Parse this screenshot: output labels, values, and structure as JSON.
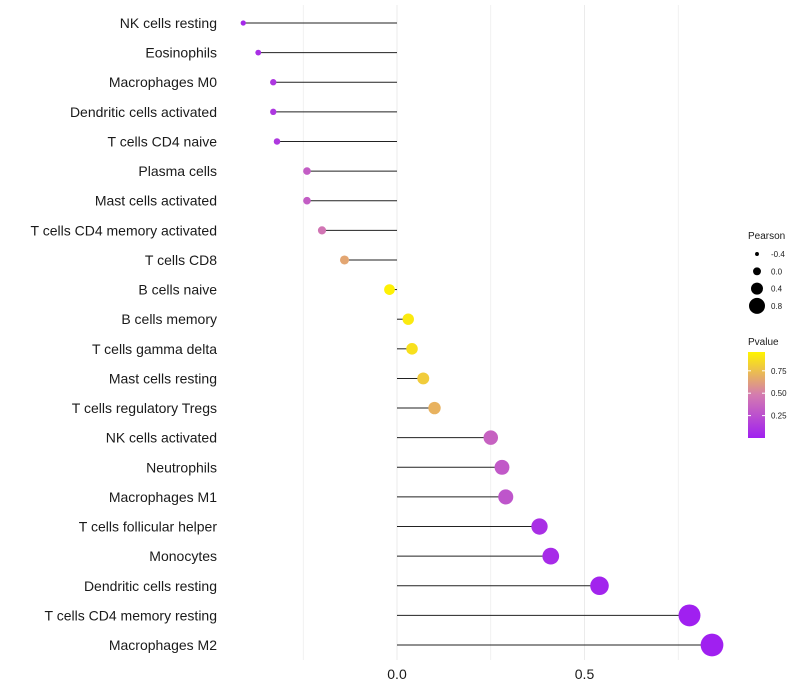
{
  "chart_data": {
    "type": "lollipop",
    "categories": [
      "NK cells resting",
      "Eosinophils",
      "Macrophages M0",
      "Dendritic cells activated",
      "T cells CD4 naive",
      "Plasma cells",
      "Mast cells activated",
      "T cells CD4 memory activated",
      "T cells CD8",
      "B cells naive",
      "B cells memory",
      "T cells gamma delta",
      "Mast cells resting",
      "T cells regulatory  Tregs ",
      "NK cells activated",
      "Neutrophils",
      "Macrophages M1",
      "T cells follicular helper",
      "Monocytes",
      "Dendritic cells resting",
      "T cells CD4 memory resting",
      "Macrophages M2"
    ],
    "pearson": [
      -0.41,
      -0.37,
      -0.33,
      -0.33,
      -0.32,
      -0.24,
      -0.24,
      -0.2,
      -0.14,
      -0.02,
      0.03,
      0.04,
      0.07,
      0.1,
      0.25,
      0.28,
      0.29,
      0.38,
      0.41,
      0.54,
      0.78,
      0.84
    ],
    "pvalue": [
      0.05,
      0.08,
      0.12,
      0.12,
      0.13,
      0.32,
      0.32,
      0.45,
      0.65,
      0.95,
      0.92,
      0.88,
      0.8,
      0.7,
      0.35,
      0.3,
      0.28,
      0.08,
      0.06,
      0.02,
      0.001,
      0.0005
    ],
    "x_axis": {
      "ticks": [
        0.0,
        0.5
      ],
      "tick_labels": [
        "0.0",
        "0.5"
      ],
      "range": [
        -0.52,
        1.07
      ],
      "grid": true
    },
    "legend_size": {
      "title": "Pearson",
      "values": [
        -0.4,
        0.0,
        0.4,
        0.8
      ],
      "labels": [
        "-0.4",
        "0.0",
        "0.4",
        "0.8"
      ]
    },
    "legend_color": {
      "title": "Pvalue",
      "ticks": [
        0.25,
        0.5,
        0.75
      ],
      "tick_labels": [
        "0.25",
        "0.50",
        "0.75"
      ],
      "range": [
        0,
        0.96
      ],
      "low_color": "#A020F0",
      "mid_color": "#D47BB0",
      "high_color": "#FFF400"
    }
  }
}
